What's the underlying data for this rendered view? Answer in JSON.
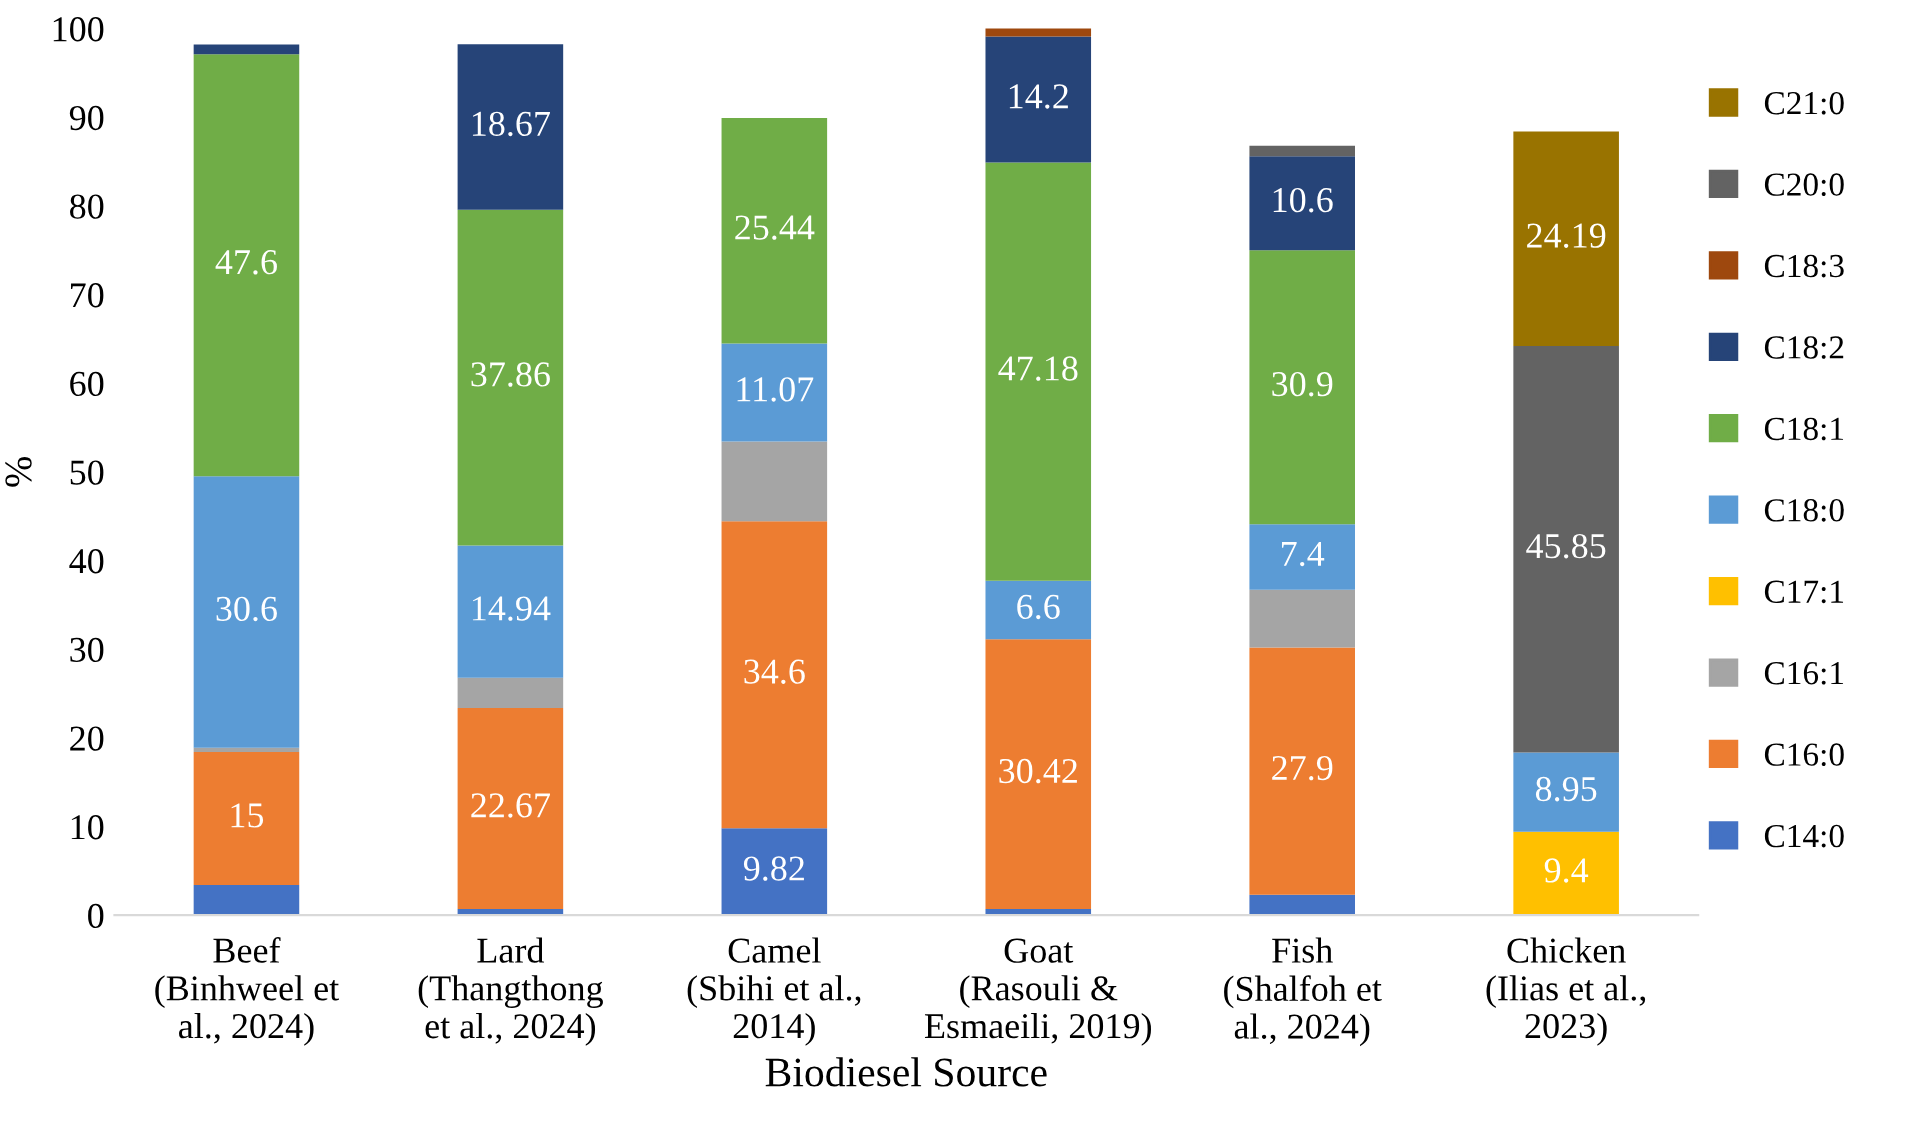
{
  "chart_data": {
    "type": "bar",
    "stacked": true,
    "xlabel": "Biodiesel Source",
    "ylabel": "%",
    "categories": [
      "Beef\n(Binhweel et\nal., 2024)",
      "Lard\n(Thangthong\net al., 2024)",
      "Camel\n(Sbihi et al.,\n2014)",
      "Goat\n(Rasouli &\nEsmaeili, 2019)",
      "Fish\n(Shalfoh et\nal., 2024)",
      "Chicken\n(Ilias et al.,\n2023)"
    ],
    "ylim": [
      0,
      100
    ],
    "yticks": [
      0,
      10,
      20,
      30,
      40,
      50,
      60,
      70,
      80,
      90,
      100
    ],
    "grid": false,
    "legend": "right",
    "series": [
      {
        "name": "C14:0",
        "color": "#4472c4",
        "values": [
          3.4,
          0.7,
          9.82,
          0.7,
          2.3,
          null
        ],
        "value_labels": [
          null,
          null,
          "9.82",
          null,
          null,
          null
        ]
      },
      {
        "name": "C16:0",
        "color": "#ed7d31",
        "values": [
          15,
          22.67,
          34.6,
          30.42,
          27.9,
          null
        ],
        "value_labels": [
          "15",
          "22.67",
          "34.6",
          "30.42",
          "27.9",
          null
        ]
      },
      {
        "name": "C16:1",
        "color": "#a5a5a5",
        "values": [
          0.5,
          3.4,
          9.0,
          null,
          6.5,
          null
        ],
        "value_labels": [
          null,
          null,
          null,
          null,
          null,
          null
        ]
      },
      {
        "name": "C17:1",
        "color": "#ffc000",
        "values": [
          null,
          null,
          null,
          null,
          null,
          9.4
        ],
        "value_labels": [
          null,
          null,
          null,
          null,
          null,
          "9.4"
        ]
      },
      {
        "name": "C18:0",
        "color": "#5b9bd5",
        "values": [
          30.6,
          14.94,
          11.07,
          6.6,
          7.4,
          8.95
        ],
        "value_labels": [
          "30.6",
          "14.94",
          "11.07",
          "6.6",
          "7.4",
          "8.95"
        ]
      },
      {
        "name": "C18:1",
        "color": "#70ad47",
        "values": [
          47.6,
          37.86,
          25.44,
          47.18,
          30.9,
          null
        ],
        "value_labels": [
          "47.6",
          "37.86",
          "25.44",
          "47.18",
          "30.9",
          null
        ]
      },
      {
        "name": "C18:2",
        "color": "#264478",
        "values": [
          1.1,
          18.67,
          null,
          14.2,
          10.6,
          null
        ],
        "value_labels": [
          null,
          "18.67",
          null,
          "14.2",
          "10.6",
          null
        ]
      },
      {
        "name": "C18:3",
        "color": "#9e480e",
        "values": [
          null,
          null,
          null,
          1.0,
          null,
          null
        ],
        "value_labels": [
          null,
          null,
          null,
          null,
          null,
          null
        ]
      },
      {
        "name": "C20:0",
        "color": "#636363",
        "values": [
          null,
          null,
          null,
          null,
          1.2,
          45.85
        ],
        "value_labels": [
          null,
          null,
          null,
          null,
          null,
          "45.85"
        ]
      },
      {
        "name": "C21:0",
        "color": "#997300",
        "values": [
          null,
          null,
          null,
          null,
          null,
          24.19
        ],
        "value_labels": [
          null,
          null,
          null,
          null,
          null,
          "24.19"
        ]
      }
    ]
  }
}
